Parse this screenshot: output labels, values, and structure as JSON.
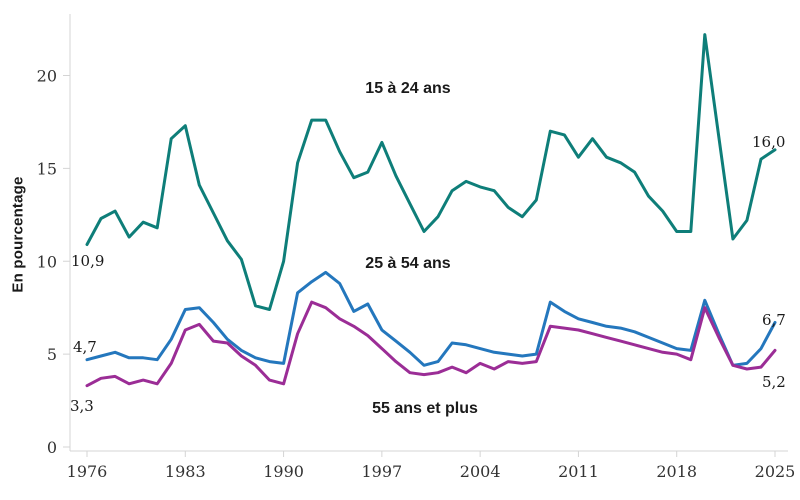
{
  "chart_data": {
    "type": "line",
    "title": "",
    "ylabel": "En pourcentage",
    "xlabel": "",
    "grid": false,
    "legend_position": "inline-labels",
    "xlim": [
      1976,
      2025
    ],
    "ylim": [
      0,
      22.5
    ],
    "x_ticks": [
      1976,
      1983,
      1990,
      1997,
      2004,
      2011,
      2018,
      2025
    ],
    "y_ticks": [
      0,
      5,
      10,
      15,
      20
    ],
    "years": [
      1976,
      1977,
      1978,
      1979,
      1980,
      1981,
      1982,
      1983,
      1984,
      1985,
      1986,
      1987,
      1988,
      1989,
      1990,
      1991,
      1992,
      1993,
      1994,
      1995,
      1996,
      1997,
      1998,
      1999,
      2000,
      2001,
      2002,
      2003,
      2004,
      2005,
      2006,
      2007,
      2008,
      2009,
      2010,
      2011,
      2012,
      2013,
      2014,
      2015,
      2016,
      2017,
      2018,
      2019,
      2020,
      2021,
      2022,
      2023,
      2024,
      2025
    ],
    "series": [
      {
        "name": "15 à 24 ans",
        "color": "#0E7E79",
        "first_label": "10,9",
        "last_label": "16,0",
        "values": [
          10.9,
          12.3,
          12.7,
          11.3,
          12.1,
          11.8,
          16.6,
          17.3,
          14.1,
          12.6,
          11.1,
          10.1,
          7.6,
          7.4,
          10.0,
          15.3,
          17.6,
          17.6,
          15.9,
          14.5,
          14.8,
          16.4,
          14.6,
          13.1,
          11.6,
          12.4,
          13.8,
          14.3,
          14.0,
          13.8,
          12.9,
          12.4,
          13.3,
          17.0,
          16.8,
          15.6,
          16.6,
          15.6,
          15.3,
          14.8,
          13.5,
          12.7,
          11.6,
          11.6,
          22.2,
          16.7,
          11.2,
          12.2,
          15.5,
          16.0
        ]
      },
      {
        "name": "25 à 54 ans",
        "color": "#2477BD",
        "first_label": "4,7",
        "last_label": "6,7",
        "values": [
          4.7,
          4.9,
          5.1,
          4.8,
          4.8,
          4.7,
          5.8,
          7.4,
          7.5,
          6.7,
          5.8,
          5.2,
          4.8,
          4.6,
          4.5,
          8.3,
          8.9,
          9.4,
          8.8,
          7.3,
          7.7,
          6.3,
          5.7,
          5.1,
          4.4,
          4.6,
          5.6,
          5.5,
          5.3,
          5.1,
          5.0,
          4.9,
          5.0,
          7.8,
          7.3,
          6.9,
          6.7,
          6.5,
          6.4,
          6.2,
          5.9,
          5.6,
          5.3,
          5.2,
          7.9,
          6.1,
          4.4,
          4.5,
          5.3,
          6.7
        ]
      },
      {
        "name": "55 ans et plus",
        "color": "#9B2D96",
        "first_label": "3,3",
        "last_label": "5,2",
        "values": [
          3.3,
          3.7,
          3.8,
          3.4,
          3.6,
          3.4,
          4.5,
          6.3,
          6.6,
          5.7,
          5.6,
          4.9,
          4.4,
          3.6,
          3.4,
          6.1,
          7.8,
          7.5,
          6.9,
          6.5,
          6.0,
          5.3,
          4.6,
          4.0,
          3.9,
          4.0,
          4.3,
          4.0,
          4.5,
          4.2,
          4.6,
          4.5,
          4.6,
          6.5,
          6.4,
          6.3,
          6.1,
          5.9,
          5.7,
          5.5,
          5.3,
          5.1,
          5.0,
          4.7,
          7.5,
          5.9,
          4.4,
          4.2,
          4.3,
          5.2
        ]
      }
    ]
  },
  "colors": {
    "axis_line": "#d4d4d4",
    "tick_text": "#333333",
    "label_text": "#1a1a1a",
    "background": "#ffffff"
  }
}
